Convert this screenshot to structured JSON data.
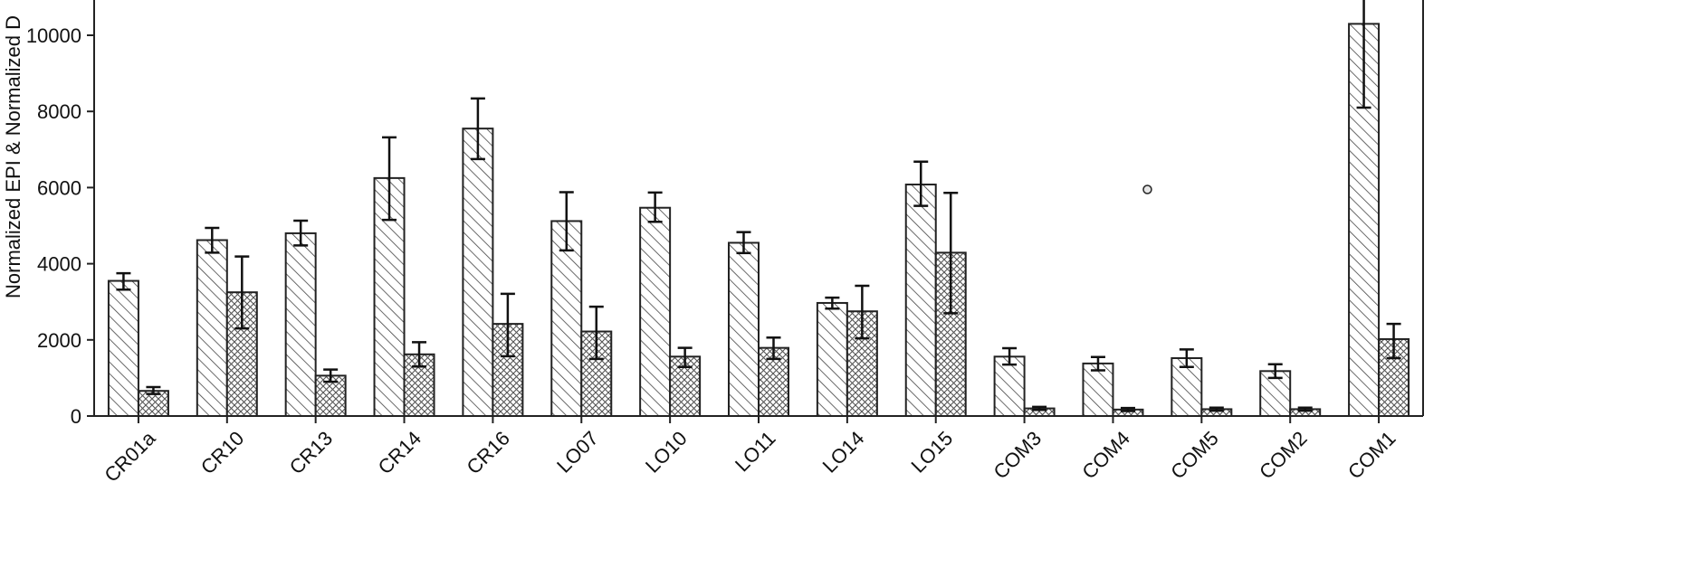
{
  "chart_data": {
    "type": "bar",
    "ylabel": "Normalized EPI & Normalized D",
    "ylim": [
      0,
      11000
    ],
    "yticks": [
      0,
      2000,
      4000,
      6000,
      8000,
      10000
    ],
    "categories": [
      "CR01a",
      "CR10",
      "CR13",
      "CR14",
      "CR16",
      "LO07",
      "LO10",
      "LO11",
      "LO14",
      "LO15",
      "COM3",
      "COM4",
      "COM5",
      "COM2",
      "COM1"
    ],
    "series": [
      {
        "pattern": "diagonal-hatch",
        "values": [
          3550,
          4620,
          4800,
          6250,
          7550,
          5120,
          5470,
          4550,
          2970,
          6080,
          1560,
          1380,
          1520,
          1180,
          10300
        ],
        "err_low": [
          3320,
          4290,
          4480,
          5150,
          6750,
          4350,
          5100,
          4280,
          2820,
          5520,
          1350,
          1200,
          1290,
          1000,
          8100
        ],
        "err_high": [
          3750,
          4940,
          5130,
          7320,
          8340,
          5880,
          5870,
          4830,
          3110,
          6680,
          1780,
          1550,
          1750,
          1360,
          11000
        ]
      },
      {
        "pattern": "cross-hatch",
        "values": [
          660,
          3250,
          1060,
          1620,
          2420,
          2220,
          1560,
          1790,
          2750,
          4290,
          200,
          170,
          180,
          180,
          2020
        ],
        "err_low": [
          580,
          2300,
          900,
          1300,
          1570,
          1500,
          1290,
          1500,
          2040,
          2700,
          160,
          130,
          140,
          140,
          1520
        ],
        "err_high": [
          760,
          4190,
          1220,
          1940,
          3210,
          2870,
          1790,
          2060,
          3420,
          5860,
          240,
          210,
          220,
          220,
          2420
        ]
      }
    ],
    "annotations": [
      {
        "type": "circle-marker",
        "x_category": "COM4",
        "y": 5950
      }
    ],
    "grid": false,
    "colors": {
      "bar_stroke": "#222222",
      "axis": "#222222",
      "errorbar": "#111111"
    }
  }
}
